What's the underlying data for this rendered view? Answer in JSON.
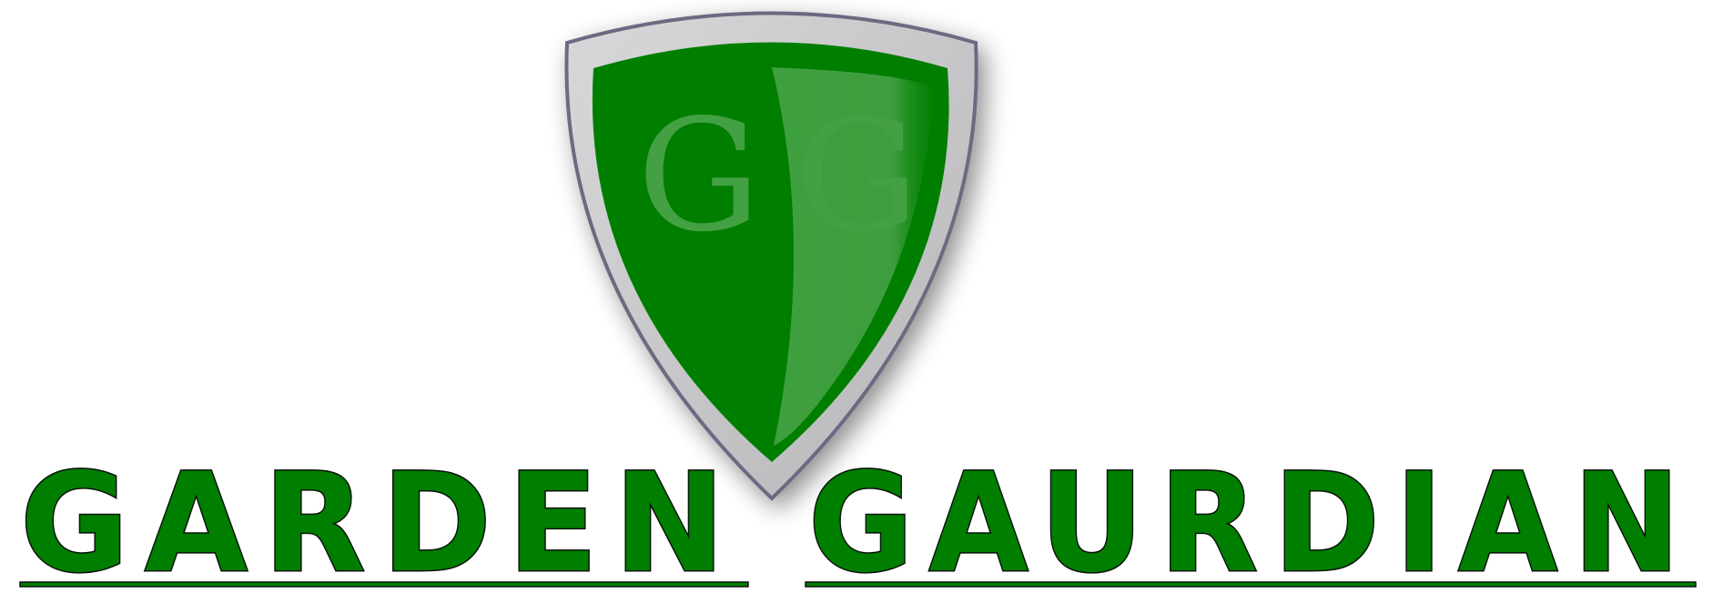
{
  "logo": {
    "monogram": [
      "G",
      "G"
    ],
    "wordmark": [
      "GARDEN",
      "GAURDIAN"
    ]
  },
  "colors": {
    "brand_green": "#007e00",
    "light_green": "#43a043",
    "shield_silver": "#c2c2c4",
    "shield_outline": "#6a6a82",
    "text_shadow": "#0a120a",
    "background": "#ffffff"
  },
  "icons": {
    "shield": "shield-icon"
  }
}
